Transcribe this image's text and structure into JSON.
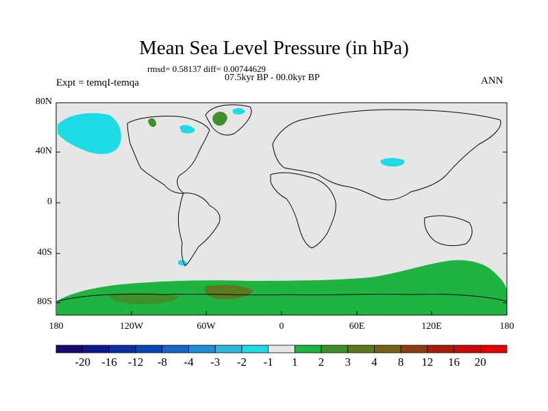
{
  "title": "Mean Sea Level Pressure (in hPa)",
  "stats_line": "rmsd= 0.58137 diff= 0.00744629",
  "period_line": "07.5kyr BP - 00.0kyr BP",
  "expt_line": "Expt = temqI-temqa",
  "season": "ANN",
  "axes": {
    "lat_labels": [
      "80N",
      "40N",
      "0",
      "40S",
      "80S"
    ],
    "lon_labels": [
      "180",
      "120W",
      "60W",
      "0",
      "60E",
      "120E",
      "180"
    ]
  },
  "colorbar": {
    "labels": [
      "-20",
      "-16",
      "-12",
      "-8",
      "-4",
      "-3",
      "-2",
      "-1",
      "1",
      "2",
      "3",
      "4",
      "8",
      "12",
      "16",
      "20"
    ],
    "colors": [
      "#1a0a6e",
      "#0d1a8c",
      "#0b2fa0",
      "#0846b4",
      "#1566c6",
      "#1f8fd2",
      "#2fb6de",
      "#1edce6",
      "#e6e6e6",
      "#1fb341",
      "#3f8f2a",
      "#5a7a1d",
      "#75621a",
      "#8a3d12",
      "#a81c0e",
      "#c80c0c",
      "#e40000"
    ]
  },
  "colors": {
    "map_background": "#e6e6e6",
    "negative_anomaly": "#1edce6",
    "positive_anomaly_1": "#1fb341",
    "positive_anomaly_2": "#3f8f2a",
    "positive_anomaly_3": "#5a7a1d"
  }
}
